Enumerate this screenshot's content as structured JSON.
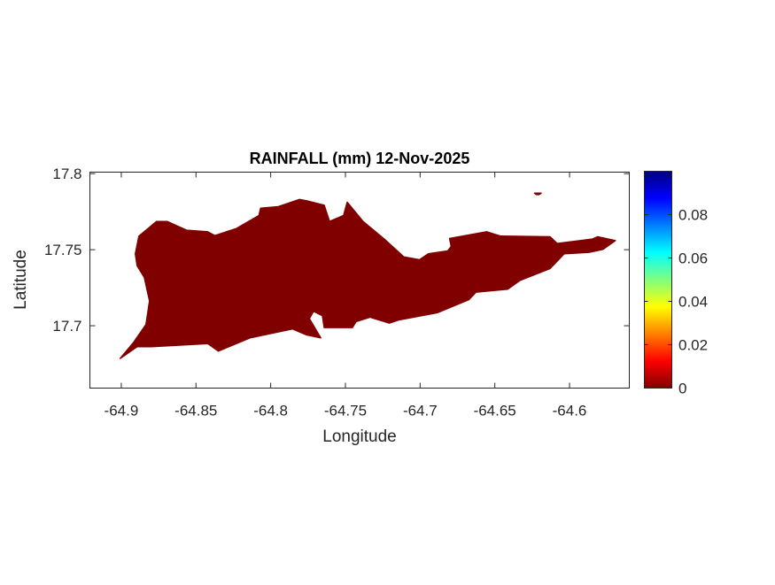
{
  "chart_data": {
    "type": "heatmap",
    "title": "RAINFALL (mm) 12-Nov-2025",
    "xlabel": "Longitude",
    "ylabel": "Latitude",
    "xlim": [
      -64.921,
      -64.56
    ],
    "ylim": [
      17.659,
      17.801
    ],
    "xticks": [
      -64.9,
      -64.85,
      -64.8,
      -64.75,
      -64.7,
      -64.65,
      -64.6
    ],
    "xtick_labels": [
      "-64.9",
      "-64.85",
      "-64.8",
      "-64.75",
      "-64.7",
      "-64.65",
      "-64.6"
    ],
    "yticks": [
      17.7,
      17.75,
      17.8
    ],
    "ytick_labels": [
      "17.7",
      "17.75",
      "17.8"
    ],
    "grid": false,
    "value_uniform": 0,
    "fill_color": "#800000",
    "regions": [
      {
        "outline": [
          [
            -64.9007,
            17.6785
          ],
          [
            -64.8917,
            17.6891
          ],
          [
            -64.8835,
            17.7008
          ],
          [
            -64.8811,
            17.7163
          ],
          [
            -64.8846,
            17.7318
          ],
          [
            -64.8894,
            17.7395
          ],
          [
            -64.8906,
            17.7473
          ],
          [
            -64.8882,
            17.7589
          ],
          [
            -64.8799,
            17.7657
          ],
          [
            -64.8764,
            17.7686
          ],
          [
            -64.8693,
            17.7686
          ],
          [
            -64.8563,
            17.7628
          ],
          [
            -64.8421,
            17.7618
          ],
          [
            -64.8374,
            17.7593
          ],
          [
            -64.8232,
            17.7638
          ],
          [
            -64.8079,
            17.7725
          ],
          [
            -64.8067,
            17.7773
          ],
          [
            -64.7949,
            17.7783
          ],
          [
            -64.7807,
            17.7831
          ],
          [
            -64.776,
            17.7822
          ],
          [
            -64.7642,
            17.7793
          ],
          [
            -64.7606,
            17.7686
          ],
          [
            -64.7512,
            17.7725
          ],
          [
            -64.7488,
            17.7812
          ],
          [
            -64.7382,
            17.7686
          ],
          [
            -64.724,
            17.757
          ],
          [
            -64.711,
            17.7453
          ],
          [
            -64.7004,
            17.7434
          ],
          [
            -64.6945,
            17.7473
          ],
          [
            -64.6815,
            17.7492
          ],
          [
            -64.6792,
            17.7521
          ],
          [
            -64.6803,
            17.7574
          ],
          [
            -64.6555,
            17.7618
          ],
          [
            -64.6461,
            17.7589
          ],
          [
            -64.613,
            17.7585
          ],
          [
            -64.6083,
            17.7541
          ],
          [
            -64.5847,
            17.757
          ],
          [
            -64.5811,
            17.7585
          ],
          [
            -64.5693,
            17.756
          ],
          [
            -64.5776,
            17.7502
          ],
          [
            -64.587,
            17.7483
          ],
          [
            -64.6036,
            17.7473
          ],
          [
            -64.613,
            17.7376
          ],
          [
            -64.6331,
            17.7298
          ],
          [
            -64.6414,
            17.724
          ],
          [
            -64.6626,
            17.7221
          ],
          [
            -64.6673,
            17.7172
          ],
          [
            -64.6886,
            17.7085
          ],
          [
            -64.7146,
            17.7037
          ],
          [
            -64.7205,
            17.7017
          ],
          [
            -64.7335,
            17.7056
          ],
          [
            -64.7429,
            17.7027
          ],
          [
            -64.7453,
            17.6988
          ],
          [
            -64.7642,
            17.6988
          ],
          [
            -64.7654,
            17.7066
          ],
          [
            -64.7713,
            17.7095
          ],
          [
            -64.7741,
            17.7047
          ],
          [
            -64.7665,
            17.692
          ],
          [
            -64.776,
            17.694
          ],
          [
            -64.7854,
            17.6979
          ],
          [
            -64.8138,
            17.692
          ],
          [
            -64.835,
            17.6833
          ],
          [
            -64.8421,
            17.6882
          ],
          [
            -64.8799,
            17.6862
          ],
          [
            -64.8894,
            17.6862
          ]
        ]
      },
      {
        "outline": [
          [
            -64.6235,
            17.7872
          ],
          [
            -64.619,
            17.7872
          ],
          [
            -64.6205,
            17.7862
          ],
          [
            -64.6222,
            17.7862
          ]
        ]
      }
    ],
    "colorbar": {
      "colormap": "jet",
      "clim": [
        0,
        0.1
      ],
      "ticks": [
        0,
        0.02,
        0.04,
        0.06,
        0.08
      ],
      "tick_labels": [
        "0",
        "0.02",
        "0.04",
        "0.06",
        "0.08"
      ]
    }
  }
}
